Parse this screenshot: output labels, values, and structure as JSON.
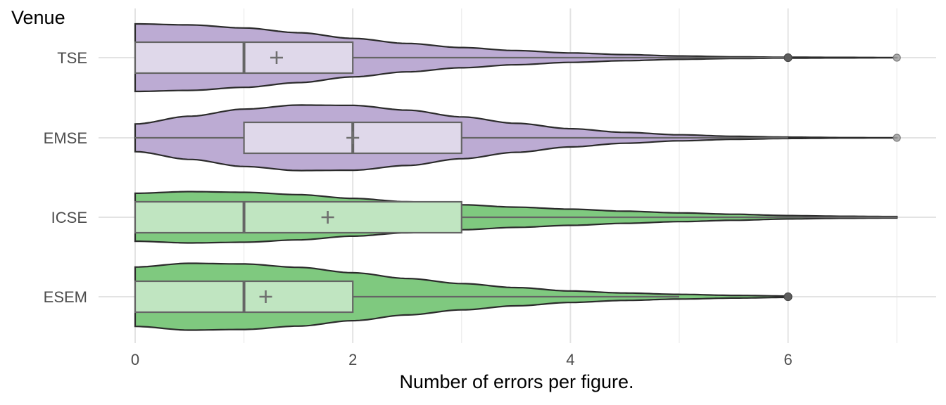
{
  "chart_data": {
    "type": "violin",
    "orientation": "horizontal",
    "title": "",
    "xlabel": "Number of errors per figure.",
    "ylabel": "Venue",
    "xlim": [
      0,
      7
    ],
    "xticks": [
      0,
      2,
      4,
      6
    ],
    "grid": true,
    "categories": [
      "TSE",
      "EMSE",
      "ICSE",
      "ESEM"
    ],
    "series": [
      {
        "name": "TSE",
        "group_color": "#bcabd3",
        "box_fill": "#dfd8ea",
        "min": 0,
        "q1": 0,
        "median": 1,
        "q3": 2,
        "mean": 1.3,
        "whisker_high": 6,
        "outliers": [
          {
            "x": 6,
            "style": "dark"
          },
          {
            "x": 7,
            "style": "light"
          }
        ],
        "violin_range": [
          0,
          7
        ],
        "density": [
          [
            0,
            1.0
          ],
          [
            0.5,
            0.97
          ],
          [
            1,
            0.88
          ],
          [
            1.5,
            0.74
          ],
          [
            2,
            0.57
          ],
          [
            2.5,
            0.42
          ],
          [
            3,
            0.3
          ],
          [
            3.5,
            0.21
          ],
          [
            4,
            0.14
          ],
          [
            4.5,
            0.09
          ],
          [
            5,
            0.05
          ],
          [
            5.5,
            0.025
          ],
          [
            6,
            0.013
          ],
          [
            6.5,
            0.008
          ],
          [
            7,
            0.004
          ]
        ]
      },
      {
        "name": "EMSE",
        "group_color": "#bcabd3",
        "box_fill": "#dfd8ea",
        "min": 0,
        "q1": 1,
        "median": 2,
        "q3": 3,
        "mean": 2.0,
        "whisker_high": 6,
        "outliers": [
          {
            "x": 7,
            "style": "light"
          }
        ],
        "violin_range": [
          0,
          7
        ],
        "density": [
          [
            0,
            0.41
          ],
          [
            0.5,
            0.64
          ],
          [
            1,
            0.85
          ],
          [
            1.5,
            0.97
          ],
          [
            2,
            0.96
          ],
          [
            2.5,
            0.82
          ],
          [
            3,
            0.62
          ],
          [
            3.5,
            0.43
          ],
          [
            4,
            0.27
          ],
          [
            4.5,
            0.16
          ],
          [
            5,
            0.09
          ],
          [
            5.5,
            0.045
          ],
          [
            6,
            0.02
          ],
          [
            6.5,
            0.007
          ],
          [
            7,
            0.003
          ]
        ]
      },
      {
        "name": "ICSE",
        "group_color": "#7fc97f",
        "box_fill": "#c0e5c1",
        "min": 0,
        "q1": 0,
        "median": 1,
        "q3": 3,
        "mean": 1.77,
        "whisker_high": 7,
        "outliers": [],
        "violin_range": [
          0,
          7
        ],
        "density": [
          [
            0,
            0.71
          ],
          [
            0.5,
            0.76
          ],
          [
            1,
            0.74
          ],
          [
            1.5,
            0.67
          ],
          [
            2,
            0.56
          ],
          [
            2.5,
            0.46
          ],
          [
            3,
            0.37
          ],
          [
            3.5,
            0.3
          ],
          [
            4,
            0.24
          ],
          [
            4.5,
            0.18
          ],
          [
            5,
            0.13
          ],
          [
            5.5,
            0.09
          ],
          [
            6,
            0.05
          ],
          [
            6.5,
            0.03
          ],
          [
            7,
            0.02
          ]
        ]
      },
      {
        "name": "ESEM",
        "group_color": "#7fc97f",
        "box_fill": "#c0e5c1",
        "min": 0,
        "q1": 0,
        "median": 1,
        "q3": 2,
        "mean": 1.2,
        "whisker_high": 5,
        "outliers": [
          {
            "x": 6,
            "style": "dark"
          }
        ],
        "violin_range": [
          0,
          6
        ],
        "density": [
          [
            0,
            0.88
          ],
          [
            0.5,
            0.99
          ],
          [
            1,
            0.97
          ],
          [
            1.5,
            0.87
          ],
          [
            2,
            0.71
          ],
          [
            2.5,
            0.54
          ],
          [
            3,
            0.39
          ],
          [
            3.5,
            0.27
          ],
          [
            4,
            0.17
          ],
          [
            4.5,
            0.11
          ],
          [
            5,
            0.07
          ],
          [
            5.5,
            0.04
          ],
          [
            6,
            0.02
          ]
        ]
      }
    ]
  }
}
